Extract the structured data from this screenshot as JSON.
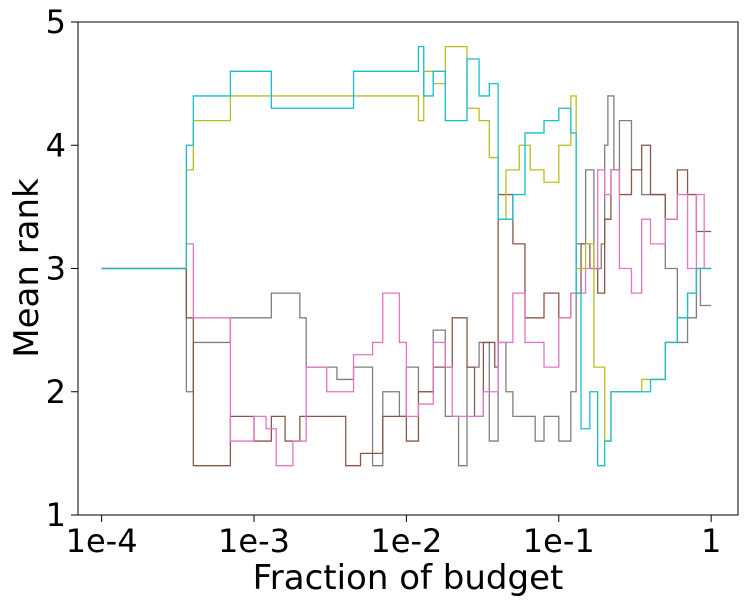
{
  "chart_data": {
    "type": "line",
    "title": "",
    "xlabel": "Fraction of budget",
    "ylabel": "Mean rank",
    "xscale": "log",
    "xlim": [
      7e-05,
      1.5
    ],
    "ylim": [
      1,
      5
    ],
    "grid": false,
    "legend": "none",
    "xticks": [
      {
        "value": 0.0001,
        "label": "1e-4"
      },
      {
        "value": 0.001,
        "label": "1e-3"
      },
      {
        "value": 0.01,
        "label": "1e-2"
      },
      {
        "value": 0.1,
        "label": "1e-1"
      },
      {
        "value": 1,
        "label": "1"
      }
    ],
    "yticks": [
      {
        "value": 1,
        "label": "1"
      },
      {
        "value": 2,
        "label": "2"
      },
      {
        "value": 3,
        "label": "3"
      },
      {
        "value": 4,
        "label": "4"
      },
      {
        "value": 5,
        "label": "5"
      }
    ],
    "series": [
      {
        "name": "gray",
        "color": "#7f7f7f",
        "points": [
          [
            0.0001,
            3.0
          ],
          [
            0.00035,
            3.0
          ],
          [
            0.00036,
            2.0
          ],
          [
            0.0004,
            2.4
          ],
          [
            0.0007,
            2.6
          ],
          [
            0.0013,
            2.8
          ],
          [
            0.002,
            2.6
          ],
          [
            0.0022,
            2.2
          ],
          [
            0.0035,
            2.1
          ],
          [
            0.0045,
            2.2
          ],
          [
            0.006,
            1.4
          ],
          [
            0.007,
            2.0
          ],
          [
            0.009,
            1.8
          ],
          [
            0.01,
            2.2
          ],
          [
            0.012,
            2.0
          ],
          [
            0.015,
            2.5
          ],
          [
            0.018,
            1.8
          ],
          [
            0.022,
            1.4
          ],
          [
            0.025,
            2.2
          ],
          [
            0.03,
            2.4
          ],
          [
            0.035,
            1.6
          ],
          [
            0.04,
            2.4
          ],
          [
            0.045,
            2.0
          ],
          [
            0.05,
            1.8
          ],
          [
            0.06,
            1.8
          ],
          [
            0.07,
            1.6
          ],
          [
            0.08,
            1.8
          ],
          [
            0.1,
            1.6
          ],
          [
            0.12,
            2.0
          ],
          [
            0.13,
            3.2
          ],
          [
            0.15,
            3.8
          ],
          [
            0.17,
            3.0
          ],
          [
            0.19,
            3.2
          ],
          [
            0.2,
            4.0
          ],
          [
            0.21,
            4.4
          ],
          [
            0.23,
            3.8
          ],
          [
            0.25,
            4.2
          ],
          [
            0.3,
            3.8
          ],
          [
            0.35,
            3.6
          ],
          [
            0.5,
            3.0
          ],
          [
            0.6,
            2.4
          ],
          [
            0.7,
            2.6
          ],
          [
            0.8,
            3.0
          ],
          [
            0.85,
            2.7
          ],
          [
            1.0,
            2.7
          ]
        ]
      },
      {
        "name": "brown",
        "color": "#8c564b",
        "points": [
          [
            0.0001,
            3.0
          ],
          [
            0.00035,
            3.0
          ],
          [
            0.00036,
            2.6
          ],
          [
            0.0004,
            1.4
          ],
          [
            0.0007,
            1.8
          ],
          [
            0.001,
            1.6
          ],
          [
            0.0013,
            1.8
          ],
          [
            0.0016,
            1.6
          ],
          [
            0.002,
            1.8
          ],
          [
            0.0035,
            1.8
          ],
          [
            0.004,
            1.4
          ],
          [
            0.005,
            1.5
          ],
          [
            0.007,
            1.8
          ],
          [
            0.01,
            1.6
          ],
          [
            0.012,
            2.0
          ],
          [
            0.015,
            2.2
          ],
          [
            0.02,
            2.6
          ],
          [
            0.025,
            2.2
          ],
          [
            0.028,
            1.8
          ],
          [
            0.032,
            2.4
          ],
          [
            0.038,
            2.2
          ],
          [
            0.04,
            3.6
          ],
          [
            0.05,
            3.2
          ],
          [
            0.06,
            2.6
          ],
          [
            0.08,
            2.8
          ],
          [
            0.1,
            2.6
          ],
          [
            0.12,
            2.8
          ],
          [
            0.14,
            3.2
          ],
          [
            0.16,
            3.0
          ],
          [
            0.18,
            2.8
          ],
          [
            0.2,
            3.4
          ],
          [
            0.22,
            3.8
          ],
          [
            0.25,
            3.6
          ],
          [
            0.3,
            3.8
          ],
          [
            0.35,
            4.0
          ],
          [
            0.4,
            3.6
          ],
          [
            0.5,
            3.4
          ],
          [
            0.6,
            3.8
          ],
          [
            0.7,
            3.6
          ],
          [
            0.8,
            3.3
          ],
          [
            1.0,
            3.3
          ]
        ]
      },
      {
        "name": "pink",
        "color": "#e377c2",
        "points": [
          [
            0.0001,
            3.0
          ],
          [
            0.00035,
            3.0
          ],
          [
            0.00036,
            3.2
          ],
          [
            0.0004,
            2.6
          ],
          [
            0.0007,
            1.6
          ],
          [
            0.001,
            1.8
          ],
          [
            0.0012,
            1.7
          ],
          [
            0.0014,
            1.4
          ],
          [
            0.0018,
            1.6
          ],
          [
            0.0022,
            2.2
          ],
          [
            0.003,
            2.0
          ],
          [
            0.0045,
            2.3
          ],
          [
            0.006,
            2.4
          ],
          [
            0.007,
            2.8
          ],
          [
            0.009,
            2.4
          ],
          [
            0.01,
            1.8
          ],
          [
            0.012,
            1.9
          ],
          [
            0.015,
            2.4
          ],
          [
            0.018,
            2.2
          ],
          [
            0.02,
            1.8
          ],
          [
            0.03,
            1.8
          ],
          [
            0.032,
            2.0
          ],
          [
            0.04,
            2.4
          ],
          [
            0.05,
            2.8
          ],
          [
            0.06,
            2.4
          ],
          [
            0.08,
            2.2
          ],
          [
            0.1,
            2.6
          ],
          [
            0.12,
            2.8
          ],
          [
            0.15,
            3.0
          ],
          [
            0.18,
            3.8
          ],
          [
            0.2,
            3.6
          ],
          [
            0.22,
            3.8
          ],
          [
            0.25,
            3.0
          ],
          [
            0.3,
            2.8
          ],
          [
            0.35,
            3.4
          ],
          [
            0.4,
            3.2
          ],
          [
            0.5,
            3.4
          ],
          [
            0.6,
            3.6
          ],
          [
            0.7,
            3.0
          ],
          [
            0.8,
            3.6
          ],
          [
            0.9,
            3.0
          ],
          [
            1.0,
            3.0
          ]
        ]
      },
      {
        "name": "olive",
        "color": "#bcbd22",
        "points": [
          [
            0.0001,
            3.0
          ],
          [
            0.00035,
            3.0
          ],
          [
            0.00036,
            3.8
          ],
          [
            0.0004,
            4.2
          ],
          [
            0.0007,
            4.4
          ],
          [
            0.0013,
            4.4
          ],
          [
            0.002,
            4.4
          ],
          [
            0.0045,
            4.4
          ],
          [
            0.01,
            4.4
          ],
          [
            0.012,
            4.2
          ],
          [
            0.013,
            4.6
          ],
          [
            0.015,
            4.5
          ],
          [
            0.018,
            4.8
          ],
          [
            0.022,
            4.8
          ],
          [
            0.025,
            4.3
          ],
          [
            0.03,
            4.2
          ],
          [
            0.035,
            3.9
          ],
          [
            0.04,
            3.4
          ],
          [
            0.045,
            3.8
          ],
          [
            0.055,
            4.0
          ],
          [
            0.065,
            3.8
          ],
          [
            0.08,
            3.7
          ],
          [
            0.1,
            4.0
          ],
          [
            0.12,
            4.4
          ],
          [
            0.13,
            3.0
          ],
          [
            0.15,
            3.2
          ],
          [
            0.17,
            2.2
          ],
          [
            0.2,
            1.6
          ],
          [
            0.22,
            2.0
          ],
          [
            0.3,
            2.0
          ],
          [
            0.35,
            2.1
          ],
          [
            0.5,
            2.4
          ],
          [
            0.6,
            2.6
          ],
          [
            0.7,
            2.8
          ],
          [
            0.8,
            3.0
          ],
          [
            1.0,
            3.0
          ]
        ]
      },
      {
        "name": "cyan",
        "color": "#17becf",
        "points": [
          [
            0.0001,
            3.0
          ],
          [
            0.00035,
            3.0
          ],
          [
            0.00036,
            4.0
          ],
          [
            0.0004,
            4.4
          ],
          [
            0.0007,
            4.6
          ],
          [
            0.0013,
            4.3
          ],
          [
            0.002,
            4.3
          ],
          [
            0.0045,
            4.6
          ],
          [
            0.01,
            4.6
          ],
          [
            0.012,
            4.8
          ],
          [
            0.013,
            4.4
          ],
          [
            0.015,
            4.6
          ],
          [
            0.018,
            4.2
          ],
          [
            0.025,
            4.7
          ],
          [
            0.03,
            4.4
          ],
          [
            0.035,
            4.5
          ],
          [
            0.04,
            3.4
          ],
          [
            0.05,
            3.6
          ],
          [
            0.06,
            4.1
          ],
          [
            0.08,
            4.2
          ],
          [
            0.1,
            4.3
          ],
          [
            0.12,
            4.1
          ],
          [
            0.13,
            2.8
          ],
          [
            0.14,
            1.7
          ],
          [
            0.16,
            2.0
          ],
          [
            0.18,
            1.4
          ],
          [
            0.2,
            1.6
          ],
          [
            0.22,
            2.0
          ],
          [
            0.3,
            2.0
          ],
          [
            0.4,
            2.1
          ],
          [
            0.5,
            2.4
          ],
          [
            0.6,
            2.6
          ],
          [
            0.7,
            2.8
          ],
          [
            0.8,
            3.0
          ],
          [
            1.0,
            3.0
          ]
        ]
      }
    ]
  }
}
